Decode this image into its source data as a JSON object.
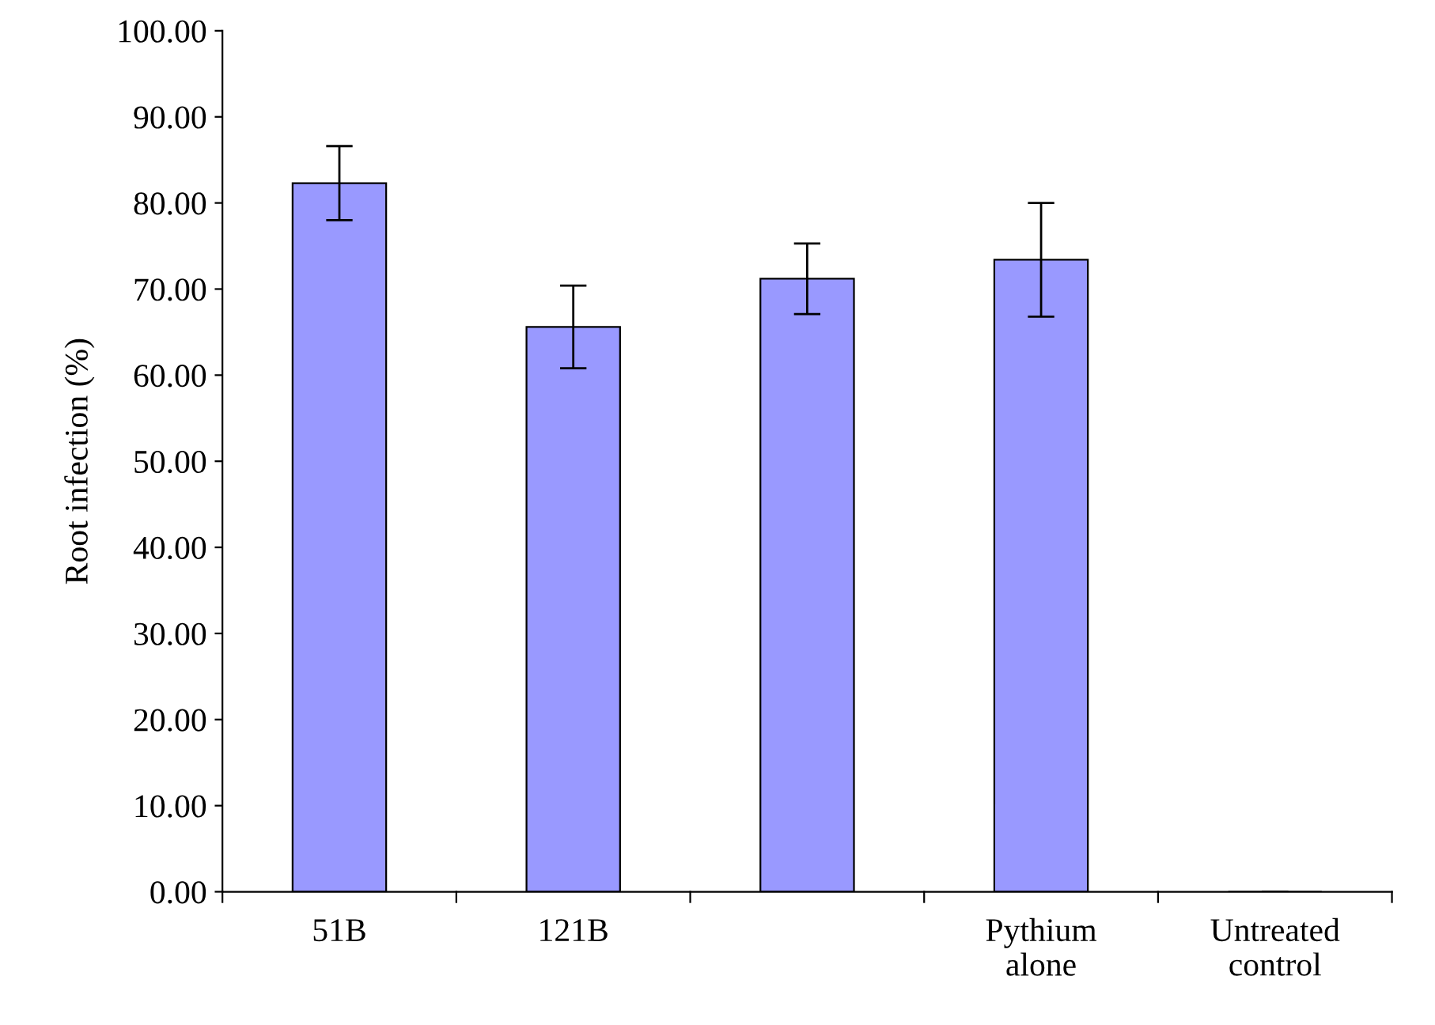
{
  "chart_data": {
    "type": "bar",
    "ylabel": "Root infection (%)",
    "categories": [
      "51B",
      "121B",
      null,
      "Pythium\nalone",
      "Untreated\ncontrol"
    ],
    "values": [
      82.3,
      65.6,
      71.2,
      73.4,
      0
    ],
    "errors": [
      4.3,
      4.8,
      4.1,
      6.6,
      0
    ],
    "color": "#9999ff",
    "ylim": [
      0,
      100
    ],
    "yticks": [
      {
        "value": 0,
        "label": "0.00"
      },
      {
        "value": 10,
        "label": "10.00"
      },
      {
        "value": 20,
        "label": "20.00"
      },
      {
        "value": 30,
        "label": "30.00"
      },
      {
        "value": 40,
        "label": "40.00"
      },
      {
        "value": 50,
        "label": "50.00"
      },
      {
        "value": 60,
        "label": "60.00"
      },
      {
        "value": 70,
        "label": "70.00"
      },
      {
        "value": 80,
        "label": "80.00"
      },
      {
        "value": 90,
        "label": "90.00"
      },
      {
        "value": 100,
        "label": "100.00"
      }
    ],
    "grid": false,
    "legend": false
  }
}
